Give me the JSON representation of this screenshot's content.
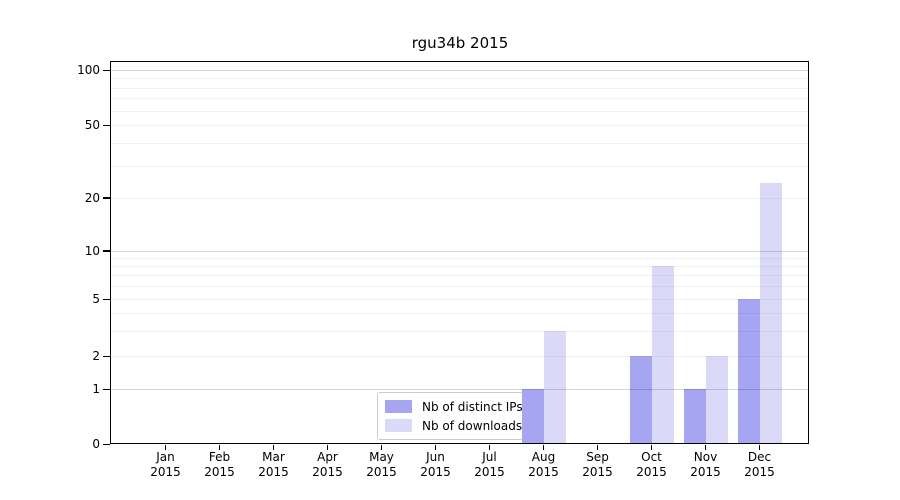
{
  "title": "rgu34b 2015",
  "legend": {
    "items": [
      {
        "label": "Nb of distinct IPs",
        "color": "#a5a5f2"
      },
      {
        "label": "Nb of downloads",
        "color": "#dadaf8"
      }
    ]
  },
  "axes": {
    "y_tick_labels": [
      "0",
      "1",
      "2",
      "5",
      "10",
      "20",
      "50",
      "100"
    ],
    "x_year": "2015"
  },
  "chart_data": {
    "type": "bar",
    "title": "rgu34b 2015",
    "categories": [
      "Jan 2015",
      "Feb 2015",
      "Mar 2015",
      "Apr 2015",
      "May 2015",
      "Jun 2015",
      "Jul 2015",
      "Aug 2015",
      "Sep 2015",
      "Oct 2015",
      "Nov 2015",
      "Dec 2015"
    ],
    "months": [
      "Jan",
      "Feb",
      "Mar",
      "Apr",
      "May",
      "Jun",
      "Jul",
      "Aug",
      "Sep",
      "Oct",
      "Nov",
      "Dec"
    ],
    "series": [
      {
        "name": "Nb of distinct IPs",
        "color": "#a5a5f2",
        "values": [
          0,
          0,
          0,
          0,
          0,
          0,
          0,
          1,
          0,
          2,
          1,
          5
        ]
      },
      {
        "name": "Nb of downloads",
        "color": "#dadaf8",
        "values": [
          0,
          0,
          0,
          0,
          0,
          0,
          0,
          3,
          0,
          8,
          2,
          24
        ]
      }
    ],
    "xlabel": "",
    "ylabel": "",
    "yscale": "log-like (symlog with 0 baseline)",
    "y_ticks": [
      0,
      1,
      2,
      5,
      10,
      20,
      50,
      100
    ],
    "y_minor_gridlines": [
      3,
      4,
      6,
      7,
      8,
      9,
      30,
      40,
      60,
      70,
      80,
      90
    ],
    "y_major_gridlines": [
      1,
      10,
      100
    ],
    "ylim": [
      0,
      115
    ],
    "grid": "horizontal",
    "legend_position": "lower center inside plot"
  }
}
